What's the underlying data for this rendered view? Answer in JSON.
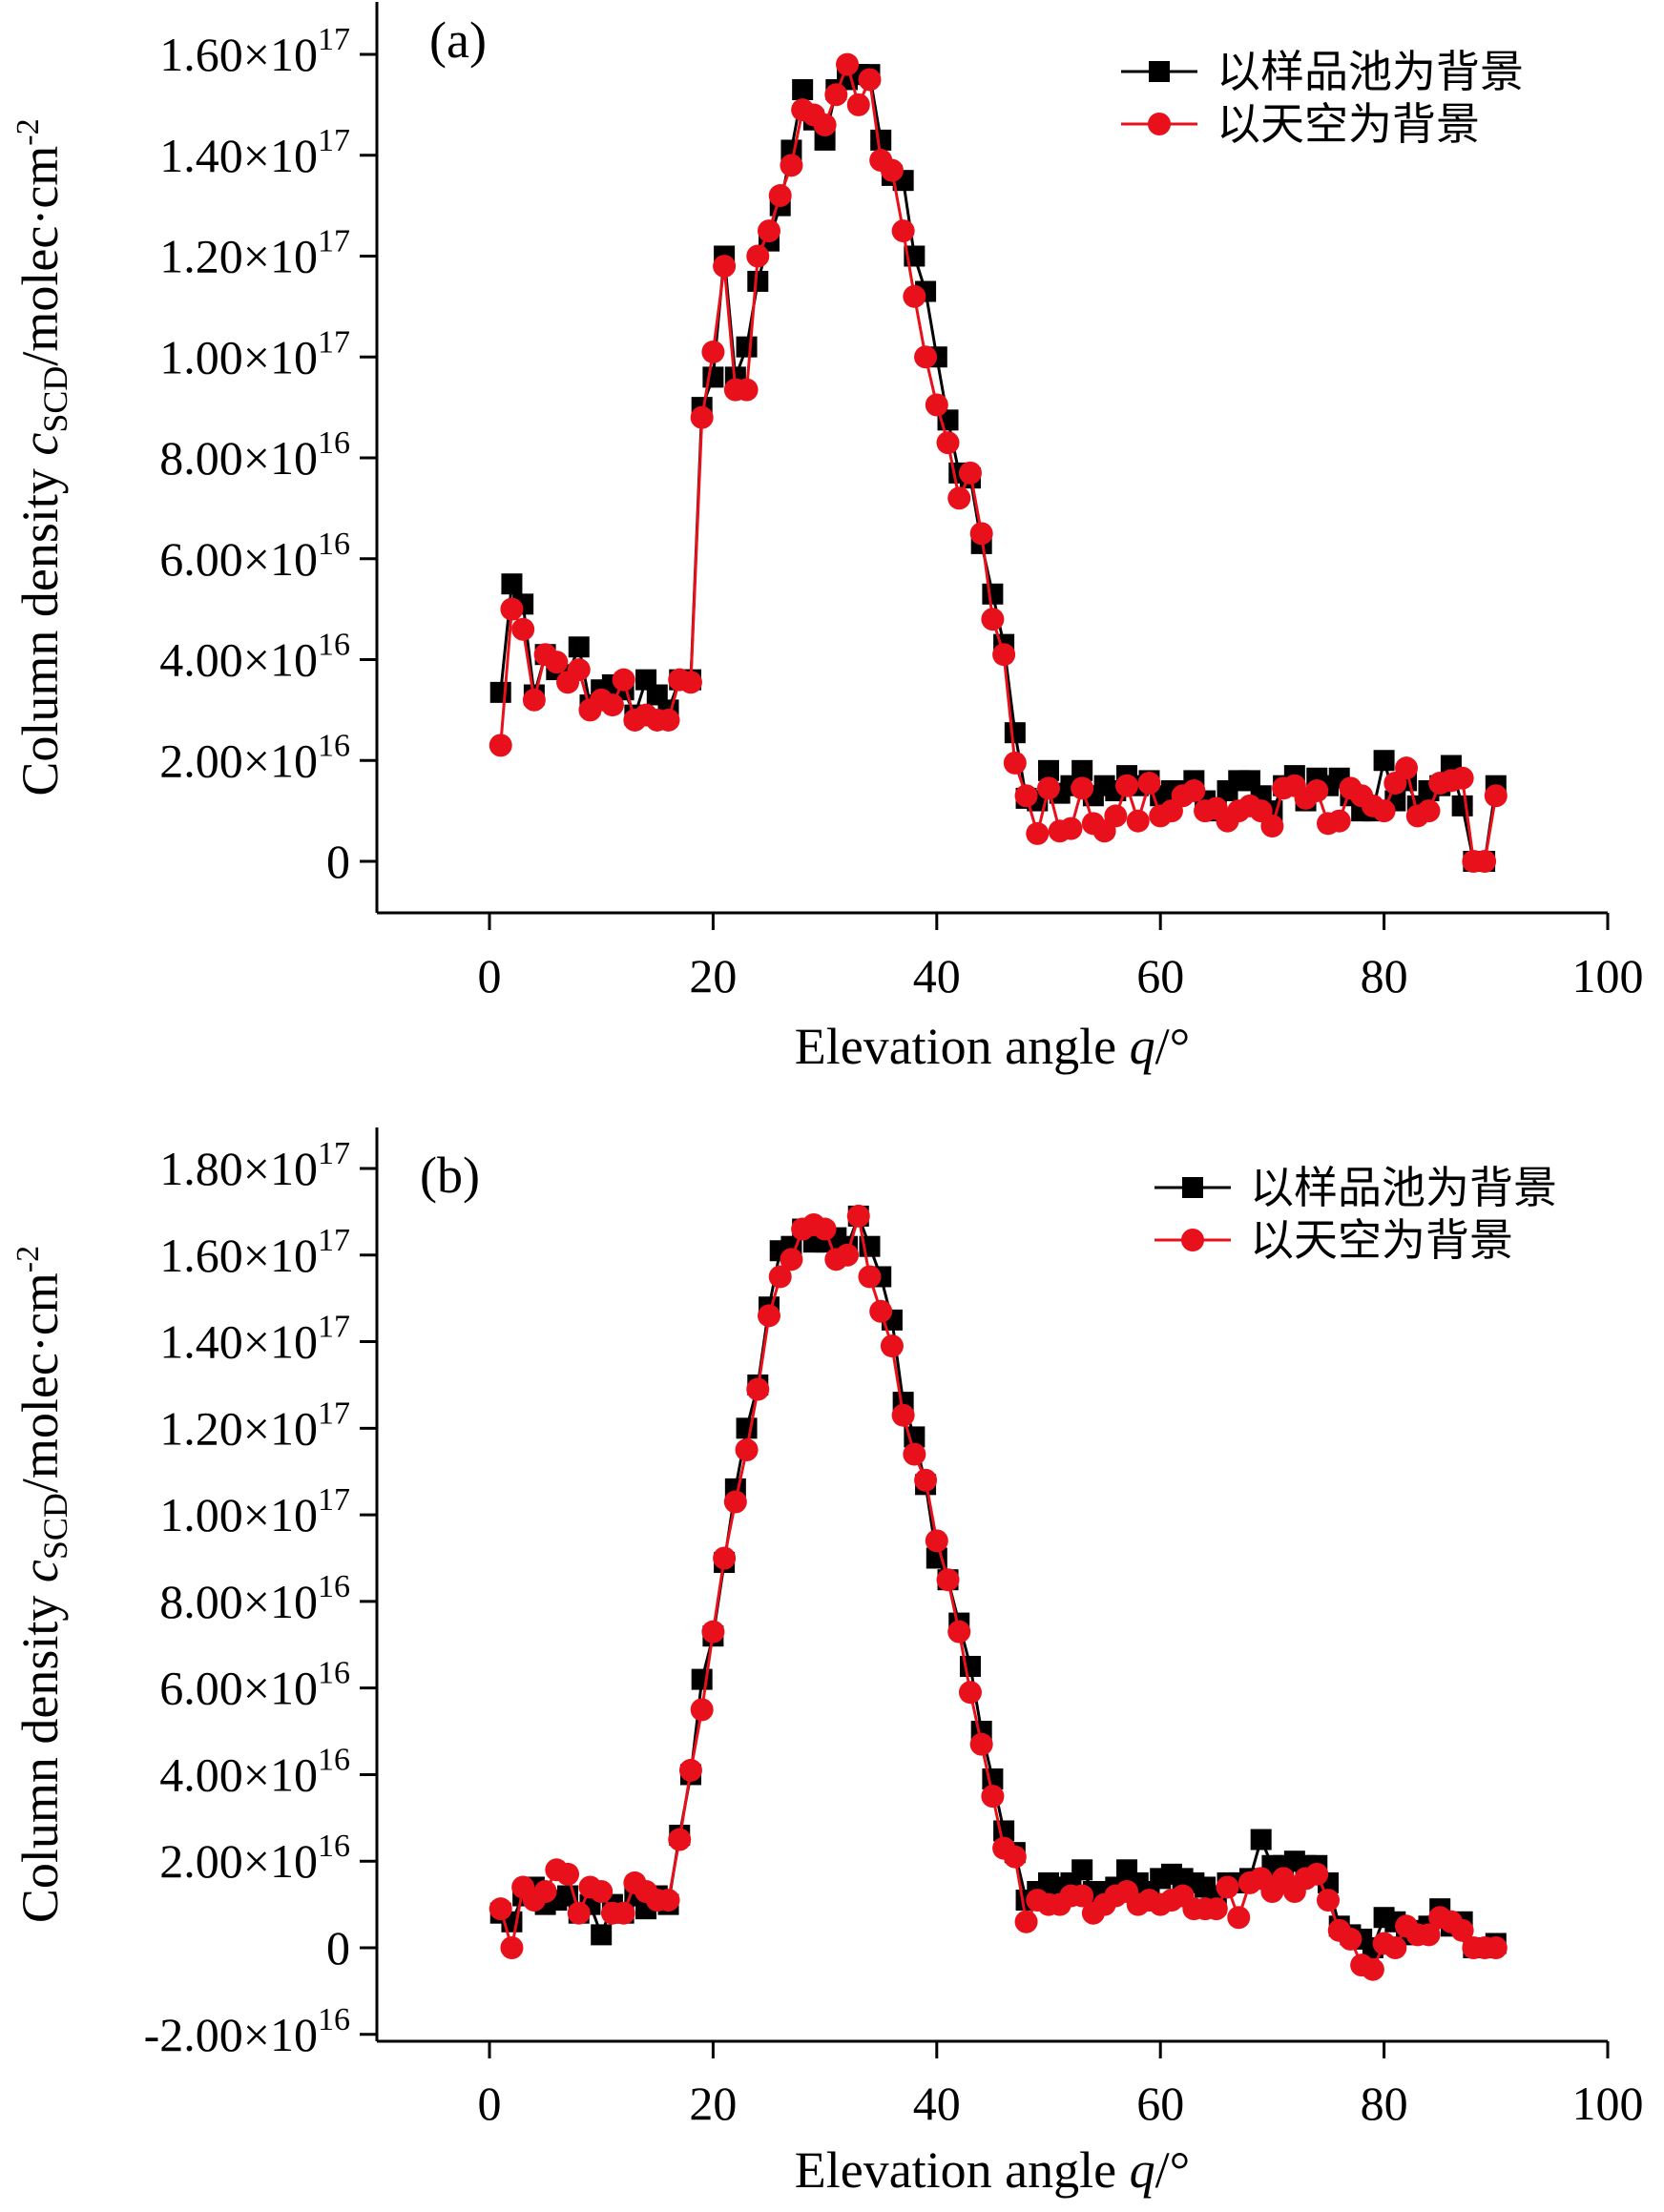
{
  "figure": {
    "series_colors": {
      "sample_cell": "#000000",
      "sky": "#e8101a"
    }
  },
  "chart_data": [
    {
      "panel": "(a)",
      "type": "line",
      "xlabel_prefix": "Elevation angle ",
      "xlabel_var": "q",
      "xlabel_suffix": "/°",
      "ylabel_prefix": "Column density ",
      "ylabel_var": "c",
      "ylabel_sub": "SCD",
      "ylabel_suffix": "/molec·cm",
      "ylabel_sup": "-2",
      "xlim": [
        -10,
        100
      ],
      "ylim": [
        -1e+16,
        1.65e+17
      ],
      "xticks": [
        0,
        20,
        40,
        60,
        80,
        100
      ],
      "xtick_labels": [
        "0",
        "20",
        "40",
        "60",
        "80",
        "100"
      ],
      "yticks": [
        0,
        2e+16,
        4e+16,
        6e+16,
        8e+16,
        1e+17,
        1.2e+17,
        1.4e+17,
        1.6e+17
      ],
      "ytick_labels": [
        {
          "mant": "0",
          "exp": ""
        },
        {
          "mant": "2.00×10",
          "exp": "16"
        },
        {
          "mant": "4.00×10",
          "exp": "16"
        },
        {
          "mant": "6.00×10",
          "exp": "16"
        },
        {
          "mant": "8.00×10",
          "exp": "16"
        },
        {
          "mant": "1.00×10",
          "exp": "17"
        },
        {
          "mant": "1.20×10",
          "exp": "17"
        },
        {
          "mant": "1.40×10",
          "exp": "17"
        },
        {
          "mant": "1.60×10",
          "exp": "17"
        }
      ],
      "legend_position": "top-right",
      "x": [
        1,
        2,
        3,
        4,
        5,
        6,
        7,
        8,
        9,
        10,
        11,
        12,
        13,
        14,
        15,
        16,
        17,
        18,
        19,
        20,
        21,
        22,
        23,
        24,
        25,
        26,
        27,
        28,
        29,
        30,
        31,
        32,
        33,
        34,
        35,
        36,
        37,
        38,
        39,
        40,
        41,
        42,
        43,
        44,
        45,
        46,
        47,
        48,
        49,
        50,
        51,
        52,
        53,
        54,
        55,
        56,
        57,
        58,
        59,
        60,
        61,
        62,
        63,
        64,
        65,
        66,
        67,
        68,
        69,
        70,
        71,
        72,
        73,
        74,
        75,
        76,
        77,
        78,
        79,
        80,
        81,
        82,
        83,
        84,
        85,
        86,
        87,
        88,
        89,
        90
      ],
      "series": [
        {
          "name": "以样品池为背景",
          "marker": "square",
          "color": "#000000",
          "values": [
            3.35e+16,
            5.5e+16,
            5.1e+16,
            3.3e+16,
            4.1e+16,
            3.8e+16,
            3.7e+16,
            4.25e+16,
            3.1e+16,
            3.4e+16,
            3.5e+16,
            3.4e+16,
            2.9e+16,
            3.6e+16,
            3.3e+16,
            3e+16,
            3.6e+16,
            3.6e+16,
            9e+16,
            9.6e+16,
            1.2e+17,
            9.6e+16,
            1.02e+17,
            1.15e+17,
            1.23e+17,
            1.3e+17,
            1.41e+17,
            1.53e+17,
            1.47e+17,
            1.43e+17,
            1.53e+17,
            1.55e+17,
            1.56e+17,
            1.56e+17,
            1.43e+17,
            1.36e+17,
            1.35e+17,
            1.2e+17,
            1.13e+17,
            1e+17,
            8.75e+16,
            7.7e+16,
            7.6e+16,
            6.3e+16,
            5.3e+16,
            4.3e+16,
            2.55e+16,
            1.25e+16,
            1.2e+16,
            1.8e+16,
            1.35e+16,
            1.5e+16,
            1.8e+16,
            1.3e+16,
            1.5e+16,
            1.4e+16,
            1.7e+16,
            1.5e+16,
            1.6e+16,
            1.3e+16,
            1.4e+16,
            1.4e+16,
            1.6e+16,
            1.2e+16,
            1e+16,
            1.4e+16,
            1.6e+16,
            1.6e+16,
            1.3e+16,
            1e+16,
            1.5e+16,
            1.7e+16,
            1.2e+16,
            1.65e+16,
            1.5e+16,
            1.65e+16,
            1.3e+16,
            1e+16,
            1e+16,
            2e+16,
            1.2e+16,
            1.6e+16,
            1.1e+16,
            1.4e+16,
            1.5e+16,
            1.9e+16,
            1.1e+16,
            0,
            0,
            1.5e+16
          ]
        },
        {
          "name": "以天空为背景",
          "marker": "circle",
          "color": "#e8101a",
          "values": [
            2.3e+16,
            5e+16,
            4.6e+16,
            3.2e+16,
            4.1e+16,
            3.95e+16,
            3.55e+16,
            3.8e+16,
            3e+16,
            3.2e+16,
            3.1e+16,
            3.6e+16,
            2.8e+16,
            2.9e+16,
            2.8e+16,
            2.8e+16,
            3.6e+16,
            3.55e+16,
            8.8e+16,
            1.01e+17,
            1.18e+17,
            9.35e+16,
            9.35e+16,
            1.2e+17,
            1.25e+17,
            1.32e+17,
            1.38e+17,
            1.49e+17,
            1.48e+17,
            1.46e+17,
            1.52e+17,
            1.58e+17,
            1.5e+17,
            1.55e+17,
            1.39e+17,
            1.37e+17,
            1.25e+17,
            1.12e+17,
            1e+17,
            9.05e+16,
            8.3e+16,
            7.2e+16,
            7.7e+16,
            6.5e+16,
            4.8e+16,
            4.1e+16,
            1.95e+16,
            1.3e+16,
            5500000000000000.0,
            1.45e+16,
            6000000000000000.0,
            6500000000000000.0,
            1.45e+16,
            7500000000000000.0,
            6000000000000000.0,
            9000000000000000.0,
            1.5e+16,
            8000000000000000.0,
            1.55e+16,
            9000000000000000.0,
            1e+16,
            1.3e+16,
            1.4e+16,
            1e+16,
            1.05e+16,
            8000000000000000.0,
            1e+16,
            1.1e+16,
            1e+16,
            7000000000000000.0,
            1.45e+16,
            1.5e+16,
            1.25e+16,
            1.4e+16,
            7500000000000000.0,
            8000000000000000.0,
            1.45e+16,
            1.3e+16,
            1.1e+16,
            1e+16,
            1.55e+16,
            1.85e+16,
            9000000000000000.0,
            1e+16,
            1.55e+16,
            1.6e+16,
            1.65e+16,
            0,
            0,
            1.3e+16
          ]
        }
      ]
    },
    {
      "panel": "(b)",
      "type": "line",
      "xlabel_prefix": "Elevation angle ",
      "xlabel_var": "q",
      "xlabel_suffix": "/°",
      "ylabel_prefix": "Column density ",
      "ylabel_var": "c",
      "ylabel_sub": "SCD",
      "ylabel_suffix": "/molec·cm",
      "ylabel_sup": "-2",
      "xlim": [
        -10,
        100
      ],
      "ylim": [
        -2e+16,
        1.8e+17
      ],
      "xticks": [
        0,
        20,
        40,
        60,
        80,
        100
      ],
      "xtick_labels": [
        "0",
        "20",
        "40",
        "60",
        "80",
        "100"
      ],
      "yticks": [
        -2e+16,
        0,
        2e+16,
        4e+16,
        6e+16,
        8e+16,
        1e+17,
        1.2e+17,
        1.4e+17,
        1.6e+17,
        1.8e+17
      ],
      "ytick_labels": [
        {
          "mant": "-2.00×10",
          "exp": "16"
        },
        {
          "mant": "0",
          "exp": ""
        },
        {
          "mant": "2.00×10",
          "exp": "16"
        },
        {
          "mant": "4.00×10",
          "exp": "16"
        },
        {
          "mant": "6.00×10",
          "exp": "16"
        },
        {
          "mant": "8.00×10",
          "exp": "16"
        },
        {
          "mant": "1.00×10",
          "exp": "17"
        },
        {
          "mant": "1.20×10",
          "exp": "17"
        },
        {
          "mant": "1.40×10",
          "exp": "17"
        },
        {
          "mant": "1.60×10",
          "exp": "17"
        },
        {
          "mant": "1.80×10",
          "exp": "17"
        }
      ],
      "legend_position": "top-right",
      "x": [
        1,
        2,
        3,
        4,
        5,
        6,
        7,
        8,
        9,
        10,
        11,
        12,
        13,
        14,
        15,
        16,
        17,
        18,
        19,
        20,
        21,
        22,
        23,
        24,
        25,
        26,
        27,
        28,
        29,
        30,
        31,
        32,
        33,
        34,
        35,
        36,
        37,
        38,
        39,
        40,
        41,
        42,
        43,
        44,
        45,
        46,
        47,
        48,
        49,
        50,
        51,
        52,
        53,
        54,
        55,
        56,
        57,
        58,
        59,
        60,
        61,
        62,
        63,
        64,
        65,
        66,
        67,
        68,
        69,
        70,
        71,
        72,
        73,
        74,
        75,
        76,
        77,
        78,
        79,
        80,
        81,
        82,
        83,
        84,
        85,
        86,
        87,
        88,
        89,
        90
      ],
      "series": [
        {
          "name": "以样品池为背景",
          "marker": "square",
          "color": "#000000",
          "values": [
            8000000000000000.0,
            6000000000000000.0,
            1.2e+16,
            1.4e+16,
            1e+16,
            1.1e+16,
            1.2e+16,
            8000000000000000.0,
            1e+16,
            3000000000000000.0,
            1e+16,
            8000000000000000.0,
            1.2e+16,
            9000000000000000.0,
            1.2e+16,
            1e+16,
            2.6e+16,
            4e+16,
            6.2e+16,
            7.2e+16,
            8.9e+16,
            1.06e+17,
            1.2e+17,
            1.3e+17,
            1.48e+17,
            1.61e+17,
            1.62e+17,
            1.66e+17,
            1.63e+17,
            1.63e+17,
            1.64e+17,
            1.62e+17,
            1.69e+17,
            1.62e+17,
            1.55e+17,
            1.45e+17,
            1.26e+17,
            1.18e+17,
            1.07e+17,
            9e+16,
            8.5e+16,
            7.5e+16,
            6.5e+16,
            5e+16,
            3.9e+16,
            2.7e+16,
            2.2e+16,
            1.1e+16,
            1.3e+16,
            1.5e+16,
            1.4e+16,
            1.5e+16,
            1.8e+16,
            1.3e+16,
            1.3e+16,
            1.4e+16,
            1.8e+16,
            1.5e+16,
            1.3e+16,
            1.6e+16,
            1.7e+16,
            1.6e+16,
            1.5e+16,
            1.4e+16,
            1.2e+16,
            1.5e+16,
            1.5e+16,
            1.6e+16,
            2.5e+16,
            1.9e+16,
            1.9e+16,
            2e+16,
            1.9e+16,
            1.9e+16,
            1.5e+16,
            5000000000000000.0,
            3000000000000000.0,
            2000000000000000.0,
            0,
            7000000000000000.0,
            6000000000000000.0,
            3000000000000000.0,
            4000000000000000.0,
            5000000000000000.0,
            9000000000000000.0,
            5000000000000000.0,
            6000000000000000.0,
            0,
            0,
            1000000000000000.0
          ]
        },
        {
          "name": "以天空为背景",
          "marker": "circle",
          "color": "#e8101a",
          "values": [
            9000000000000000.0,
            0,
            1.4e+16,
            1.1e+16,
            1.3e+16,
            1.8e+16,
            1.7e+16,
            8000000000000000.0,
            1.4e+16,
            1.3e+16,
            8000000000000000.0,
            8000000000000000.0,
            1.5e+16,
            1.3e+16,
            1.1e+16,
            1.1e+16,
            2.5e+16,
            4.1e+16,
            5.5e+16,
            7.3e+16,
            9e+16,
            1.03e+17,
            1.15e+17,
            1.29e+17,
            1.46e+17,
            1.55e+17,
            1.59e+17,
            1.66e+17,
            1.67e+17,
            1.66e+17,
            1.59e+17,
            1.6e+17,
            1.69e+17,
            1.55e+17,
            1.47e+17,
            1.39e+17,
            1.23e+17,
            1.14e+17,
            1.08e+17,
            9.4e+16,
            8.5e+16,
            7.3e+16,
            5.9e+16,
            4.7e+16,
            3.5e+16,
            2.3e+16,
            2.1e+16,
            6000000000000000.0,
            1.1e+16,
            1e+16,
            1e+16,
            1.2e+16,
            1.2e+16,
            8000000000000000.0,
            1e+16,
            1.2e+16,
            1.3e+16,
            1e+16,
            1.1e+16,
            1e+16,
            1.1e+16,
            1.2e+16,
            9000000000000000.0,
            9000000000000000.0,
            9000000000000000.0,
            1.4e+16,
            7000000000000000.0,
            1.5e+16,
            1.6e+16,
            1.3e+16,
            1.6e+16,
            1.3e+16,
            1.6e+16,
            1.7e+16,
            1.1e+16,
            4000000000000000.0,
            2000000000000000.0,
            -4000000000000000.0,
            -5000000000000000.0,
            1000000000000000.0,
            0,
            5000000000000000.0,
            3000000000000000.0,
            3000000000000000.0,
            7000000000000000.0,
            6000000000000000.0,
            4000000000000000.0,
            0,
            0,
            0
          ]
        }
      ]
    }
  ]
}
